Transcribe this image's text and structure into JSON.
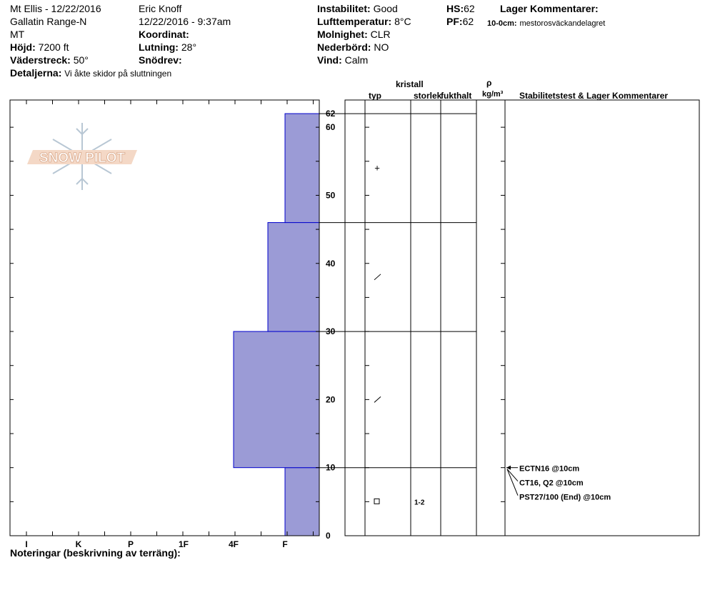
{
  "header": {
    "location": "Mt Ellis - 12/22/2016",
    "range": "Gallatin Range-N",
    "state": "MT",
    "elevation_label": "Höjd:",
    "elevation_value": "7200 ft",
    "aspect_label": "Väderstreck:",
    "aspect_value": "50°",
    "details_label": "Detaljerna:",
    "details_value": "Vi åkte skidor på sluttningen",
    "observer": "Eric Knoff",
    "datetime": "12/22/2016 - 9:37am",
    "coord_label": "Koordinat:",
    "slope_label": "Lutning:",
    "slope_value": "28°",
    "drift_label": "Snödrev:",
    "stability_label": "Instabilitet:",
    "stability_value": "Good",
    "airtemp_label": "Lufttemperatur:",
    "airtemp_value": "8°C",
    "sky_label": "Molnighet:",
    "sky_value": "CLR",
    "precip_label": "Nederbörd:",
    "precip_value": "NO",
    "wind_label": "Vind:",
    "wind_value": "Calm",
    "hs_label": "HS:",
    "hs_value": "62",
    "pf_label": "PF:",
    "pf_value": "62",
    "layer_comments_title": "Lager Kommentarer:",
    "layer_comment_depth": "10-0cm:",
    "layer_comment_text": "mestorosväckandelagret"
  },
  "logo": {
    "text": "SNOW PILOT"
  },
  "table_headers": {
    "kristall": "kristall",
    "typ": "typ",
    "storlek": "storlek",
    "fukthalt": "fukthalt",
    "rho": "ρ",
    "density_unit": "kg/m³",
    "stability_title": "Stabilitetstest & Lager Kommentarer"
  },
  "notes_label": "Noteringar (beskrivning av terräng):",
  "chart_data": {
    "type": "bar",
    "x_categories": [
      "I",
      "K",
      "P",
      "1F",
      "4F",
      "F"
    ],
    "y_ticks": [
      0,
      10,
      20,
      30,
      40,
      50,
      60
    ],
    "ylim": [
      0,
      64
    ],
    "top_label": "62",
    "layers": [
      {
        "bottom": 0,
        "top": 10,
        "hardness": "F"
      },
      {
        "bottom": 10,
        "top": 30,
        "hardness": "4F"
      },
      {
        "bottom": 30,
        "top": 46,
        "hardness": "4F-F"
      },
      {
        "bottom": 46,
        "top": 62,
        "hardness": "F"
      }
    ],
    "layer_boundaries": [
      10,
      30,
      46,
      62
    ],
    "crystals": [
      {
        "height": 54,
        "symbol": "+"
      },
      {
        "height": 38,
        "symbol": "/"
      },
      {
        "height": 20,
        "symbol": "/"
      },
      {
        "height": 5,
        "symbol": "□",
        "size": "1-2"
      }
    ],
    "tests": [
      {
        "height": 10,
        "text": "ECTN16 @10cm"
      },
      {
        "height": 10,
        "text": "CT16, Q2 @10cm"
      },
      {
        "height": 10,
        "text": "PST27/100 (End) @10cm"
      }
    ],
    "colors": {
      "fill": "#9b9bd6",
      "edge": "#0000cc"
    }
  }
}
